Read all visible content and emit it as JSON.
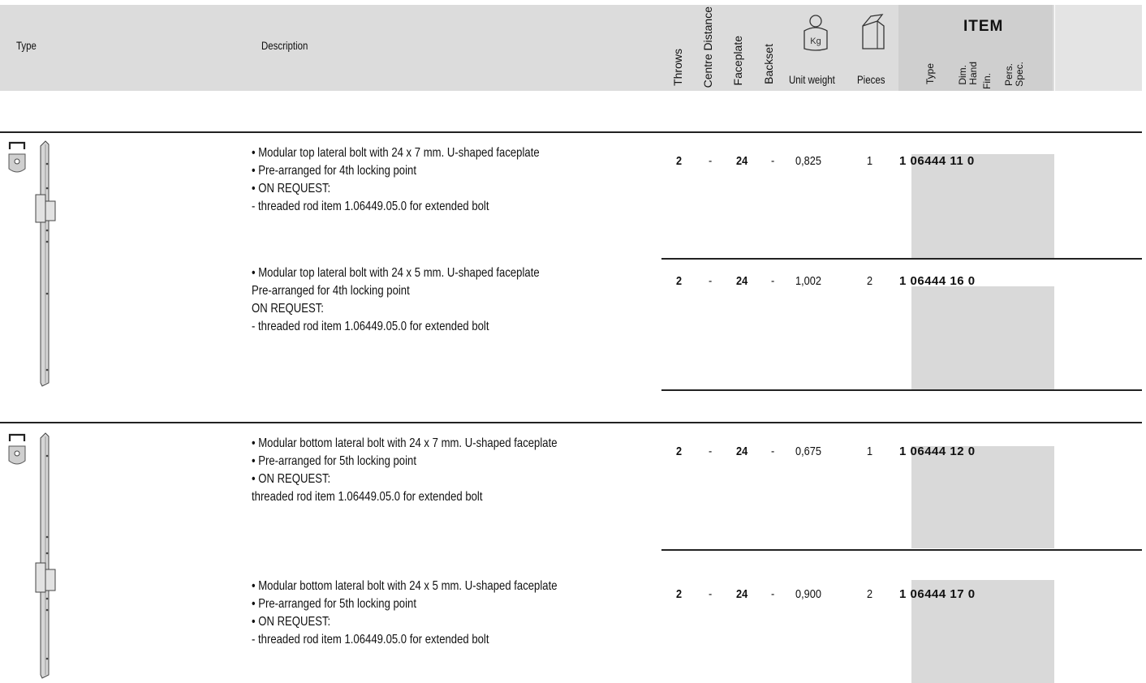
{
  "header": {
    "type": "Type",
    "description": "Description",
    "throws": "Throws",
    "centre_distance": "Centre Distance",
    "faceplate": "Faceplate",
    "backset": "Backset",
    "unit_weight": "Unit weight",
    "pieces": "Pieces",
    "weight_icon_text": "Kg",
    "item": {
      "title": "ITEM",
      "type": "Type",
      "dim": "Dim.",
      "hand": "Hand",
      "fin": "Fin.",
      "pers": "Pers.",
      "spec": "Spec."
    }
  },
  "rows": [
    {
      "lines": [
        "Modular top lateral bolt with 24 x 7 mm. U-shaped faceplate",
        "Pre-arranged for 4th  locking point",
        "ON REQUEST:",
        " - threaded rod item 1.06449.05.0 for extended bolt"
      ],
      "bullets": [
        true,
        true,
        true,
        false
      ],
      "throws": "2",
      "centre_distance": "-",
      "faceplate": "24",
      "backset": "-",
      "unit_weight": "0,825",
      "pieces": "1",
      "code_prefix": "1",
      "code": "06444 11 0"
    },
    {
      "lines": [
        "Modular top lateral bolt with 24 x 5 mm. U-shaped faceplate",
        "Pre-arranged for 4th  locking point",
        "ON REQUEST:",
        " - threaded rod item 1.06449.05.0 for extended bolt"
      ],
      "bullets": [
        true,
        false,
        false,
        false
      ],
      "throws": "2",
      "centre_distance": "-",
      "faceplate": "24",
      "backset": "-",
      "unit_weight": "1,002",
      "pieces": "2",
      "code_prefix": "1",
      "code": "06444 16 0"
    },
    {
      "lines": [
        "Modular bottom lateral bolt with 24 x 7 mm. U-shaped faceplate",
        "Pre-arranged for 5th  locking point",
        "ON REQUEST:",
        "threaded rod item 1.06449.05.0 for extended bolt"
      ],
      "bullets": [
        true,
        true,
        true,
        false
      ],
      "throws": "2",
      "centre_distance": "-",
      "faceplate": "24",
      "backset": "-",
      "unit_weight": "0,675",
      "pieces": "1",
      "code_prefix": "1",
      "code": "06444 12 0"
    },
    {
      "lines": [
        "Modular bottom lateral bolt with 24 x 5 mm. U-shaped faceplate",
        "Pre-arranged for 5th  locking point",
        "ON REQUEST:",
        " - threaded rod item 1.06449.05.0 for extended bolt"
      ],
      "bullets": [
        true,
        true,
        true,
        false
      ],
      "throws": "2",
      "centre_distance": "-",
      "faceplate": "24",
      "backset": "-",
      "unit_weight": "0,900",
      "pieces": "2",
      "code_prefix": "1",
      "code": "06444 17 0"
    }
  ]
}
